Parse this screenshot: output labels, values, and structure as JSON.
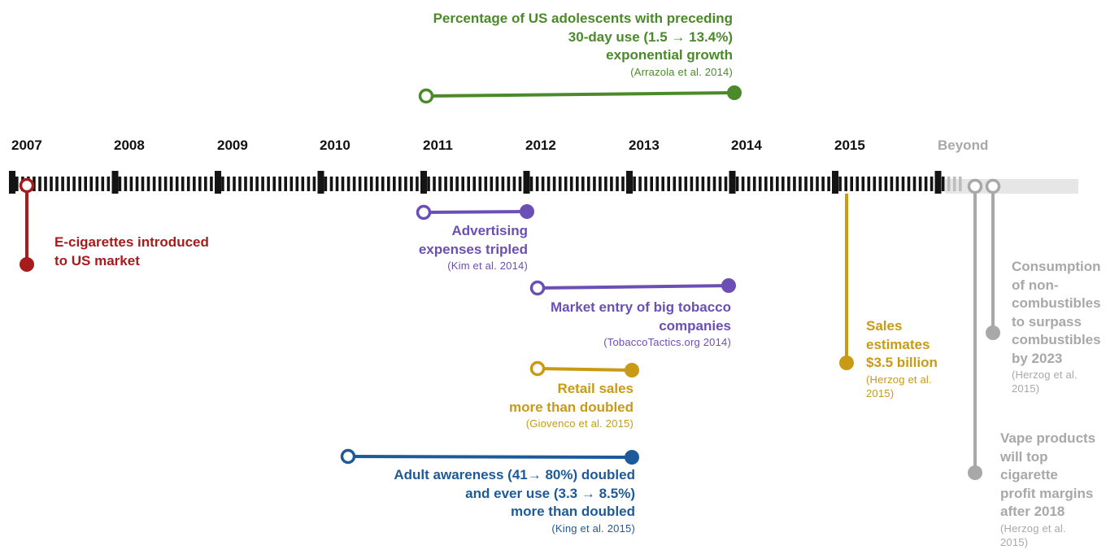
{
  "timeline": {
    "years": [
      "2007",
      "2008",
      "2009",
      "2010",
      "2011",
      "2012",
      "2013",
      "2014",
      "2015",
      "Beyond"
    ]
  },
  "colors": {
    "red": "#a61c1c",
    "green": "#4a8a2a",
    "purple": "#6b4fb5",
    "gold": "#c99a14",
    "blue": "#1d5a99",
    "grey": "#a8a8a8"
  },
  "events": {
    "ecig": {
      "l1": "E-cigarettes introduced",
      "l2": "to US market"
    },
    "adolescent": {
      "l1": "Percentage of US adolescents with preceding",
      "l2": "30-day use (1.5 → 13.4%)",
      "l3": "exponential growth",
      "cite": "(Arrazola et al. 2014)"
    },
    "advertising": {
      "l1": "Advertising",
      "l2": "expenses tripled",
      "cite": "(Kim et al. 2014)"
    },
    "tobacco": {
      "l1": "Market entry of big tobacco",
      "l2": "companies",
      "cite": "(TobaccoTactics.org 2014)"
    },
    "retail": {
      "l1": "Retail sales",
      "l2": "more than doubled",
      "cite": "(Giovenco et al. 2015)"
    },
    "adult": {
      "l1": "Adult awareness (41→ 80%) doubled",
      "l2": "and ever use (3.3 → 8.5%)",
      "l3": "more than doubled",
      "cite": "(King et al. 2015)"
    },
    "sales": {
      "l1": "Sales",
      "l2": "estimates",
      "l3": "$3.5 billion",
      "cite1": "(Herzog et al.",
      "cite2": "2015)"
    },
    "consumption": {
      "l1": "Consumption",
      "l2": "of non-",
      "l3": "combustibles",
      "l4": "to surpass",
      "l5": "combustibles",
      "l6": "by 2023",
      "cite1": "(Herzog et al.",
      "cite2": "2015)"
    },
    "vape": {
      "l1": "Vape products",
      "l2": "will top",
      "l3": "cigarette",
      "l4": "profit margins",
      "l5": "after 2018",
      "cite1": "(Herzog et al.",
      "cite2": "2015)"
    }
  }
}
